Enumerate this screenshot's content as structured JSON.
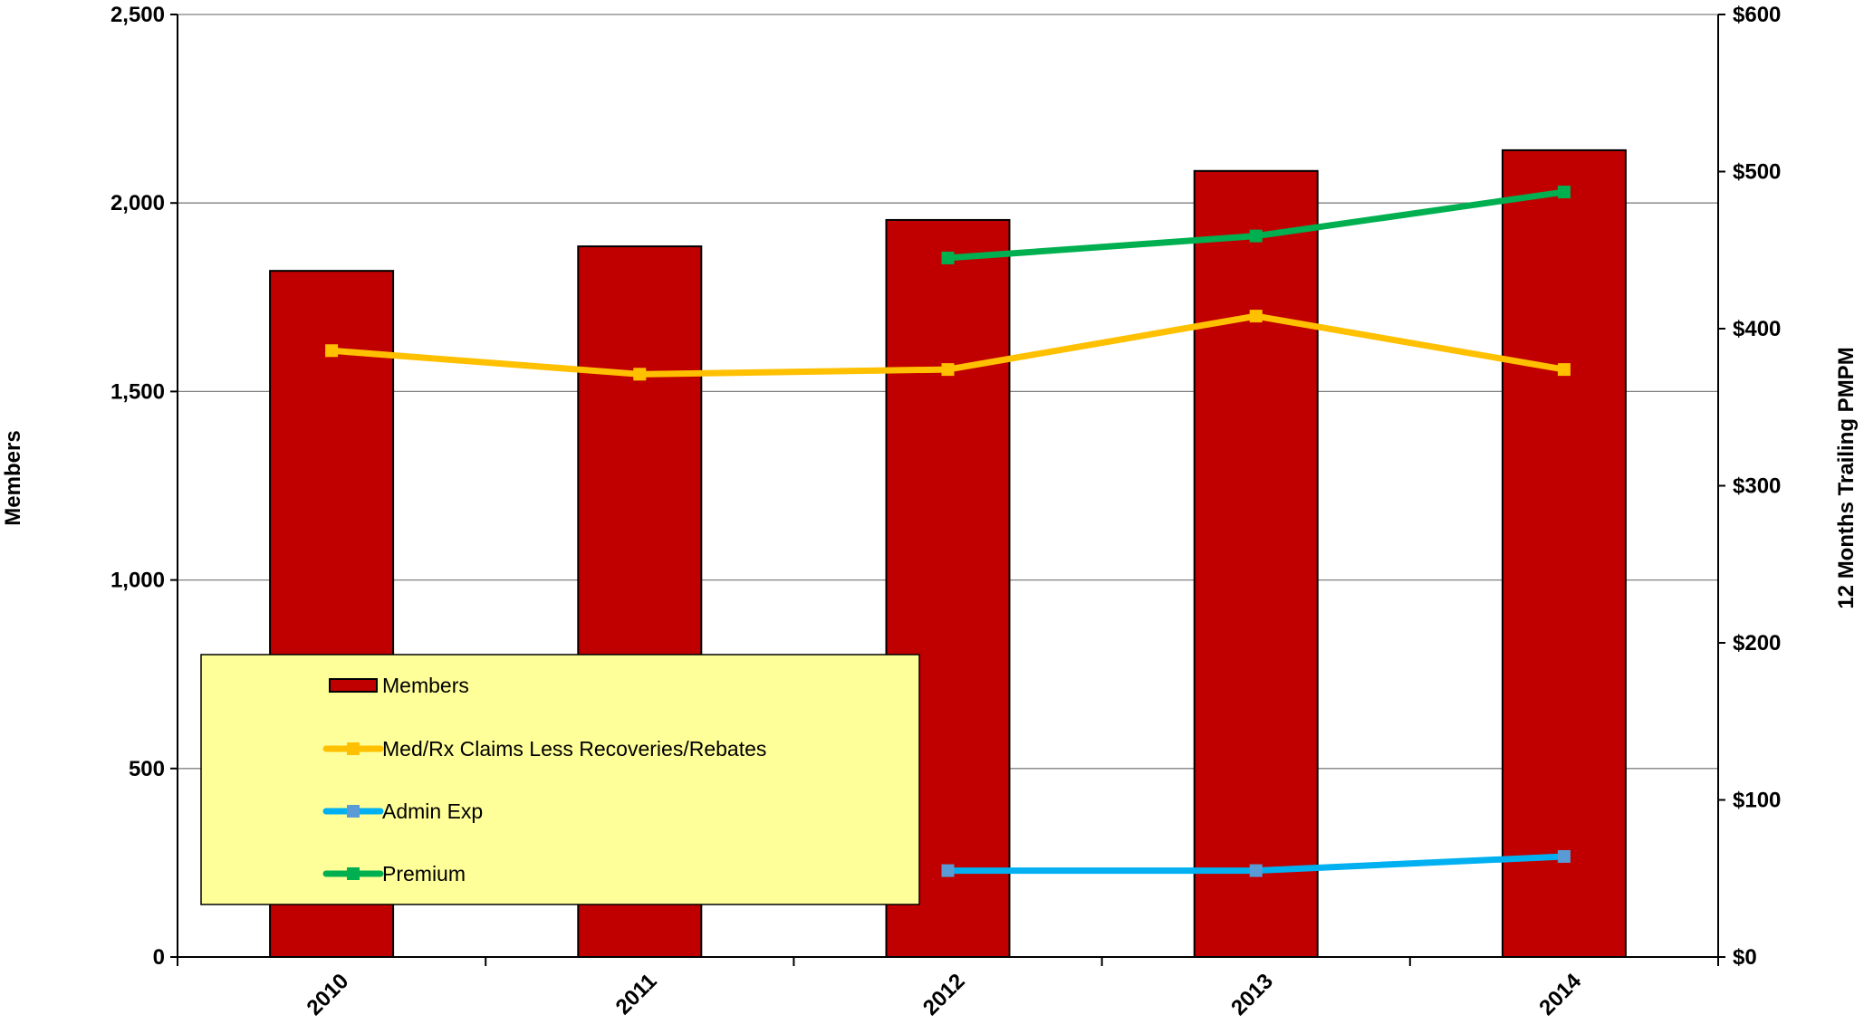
{
  "chart_data": {
    "type": "bar",
    "title": "",
    "categories": [
      "2010",
      "2011",
      "2012",
      "2013",
      "2014"
    ],
    "y_left": {
      "label": "Members",
      "range": [
        0,
        2500
      ],
      "ticks": [
        0,
        500,
        1000,
        1500,
        2000,
        2500
      ],
      "tick_labels": [
        "0",
        "500",
        "1,000",
        "1,500",
        "2,000",
        "2,500"
      ]
    },
    "y_right": {
      "label": "12 Months Trailing PMPM",
      "range": [
        0,
        600
      ],
      "ticks": [
        0,
        100,
        200,
        300,
        400,
        500,
        600
      ],
      "tick_labels": [
        "$0",
        "$100",
        "$200",
        "$300",
        "$400",
        "$500",
        "$600"
      ]
    },
    "grid": true,
    "legend_position": "bottom-left",
    "series": [
      {
        "name": "Members",
        "type": "bar",
        "axis": "left",
        "color": "#C00000",
        "values": [
          1820,
          1885,
          1955,
          2085,
          2140
        ]
      },
      {
        "name": "Med/Rx Claims Less Recoveries/Rebates",
        "type": "line",
        "axis": "right",
        "color": "#FFC000",
        "marker": "square",
        "values": [
          386,
          371,
          374,
          408,
          374
        ]
      },
      {
        "name": "Admin Exp",
        "type": "line",
        "axis": "right",
        "color": "#00B0F0",
        "marker": "square",
        "marker_color": "#5B9BD5",
        "values": [
          null,
          null,
          55,
          55,
          64
        ]
      },
      {
        "name": "Premium",
        "type": "line",
        "axis": "right",
        "color": "#00B050",
        "marker": "square",
        "values": [
          null,
          null,
          445,
          459,
          487
        ]
      }
    ]
  }
}
